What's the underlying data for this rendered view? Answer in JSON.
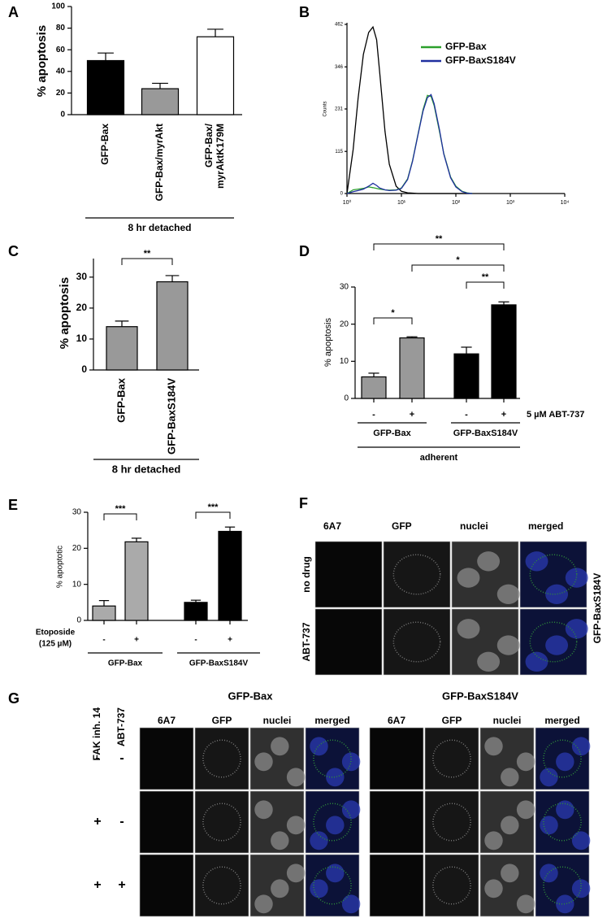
{
  "chart_data": [
    {
      "panel": "A",
      "type": "bar",
      "y_label": "% apoptosis",
      "categories": [
        "GFP-Bax",
        "GFP-Bax/myrAkt",
        [
          "GFP-Bax/",
          "myrAktK179M"
        ]
      ],
      "values": [
        50,
        24,
        72
      ],
      "errors": [
        7,
        5,
        7
      ],
      "colors": [
        "#000000",
        "#999999",
        "#ffffff"
      ],
      "ylim": [
        0,
        100
      ],
      "yticks": [
        0,
        20,
        40,
        60,
        80,
        100
      ],
      "group_label": "8 hr detached"
    },
    {
      "panel": "B",
      "type": "line",
      "y_label": "Counts",
      "log_x": true,
      "xlim": [
        1,
        10000
      ],
      "xticks": [
        {
          "value": 1,
          "label": "10⁰"
        },
        {
          "value": 10,
          "label": "10¹"
        },
        {
          "value": 100,
          "label": "10²"
        },
        {
          "value": 1000,
          "label": "10³"
        },
        {
          "value": 10000,
          "label": "10⁴"
        }
      ],
      "ylim": [
        0,
        462
      ],
      "yticks": [
        0,
        115,
        231,
        346,
        462
      ],
      "x": [
        1,
        1.3,
        1.6,
        2,
        2.5,
        3,
        3.5,
        4,
        5,
        6,
        8,
        10,
        13,
        16,
        20,
        25,
        30,
        35,
        40,
        50,
        60,
        80,
        100,
        130,
        160,
        200
      ],
      "series": [
        {
          "color": "#000000",
          "values": [
            0,
            120,
            260,
            380,
            440,
            455,
            420,
            330,
            170,
            80,
            20,
            6,
            2,
            1,
            0,
            0,
            0,
            0,
            0,
            0,
            0,
            0,
            0,
            0,
            0,
            0
          ]
        },
        {
          "name": "GFP-Bax",
          "color": "#2ca02c",
          "values": [
            0,
            10,
            12,
            14,
            18,
            16,
            14,
            12,
            10,
            9,
            10,
            15,
            40,
            90,
            160,
            230,
            268,
            265,
            240,
            170,
            110,
            45,
            20,
            6,
            2,
            0
          ]
        },
        {
          "name": "GFP-BaxS184V",
          "color": "#1f2f9f",
          "values": [
            0,
            5,
            8,
            12,
            20,
            28,
            22,
            15,
            10,
            8,
            9,
            14,
            38,
            88,
            158,
            226,
            262,
            270,
            245,
            175,
            108,
            43,
            18,
            5,
            1,
            0
          ]
        }
      ]
    },
    {
      "panel": "C",
      "type": "bar",
      "y_label": "% apoptosis",
      "categories": [
        "GFP-Bax",
        "GFP-BaxS184V"
      ],
      "values": [
        14,
        28.5
      ],
      "errors": [
        1.8,
        2
      ],
      "colors": [
        "#999999",
        "#999999"
      ],
      "ylim": [
        0,
        36
      ],
      "yticks": [
        0,
        10,
        20,
        30
      ],
      "significance": [
        "**"
      ],
      "group_label": "8 hr detached"
    },
    {
      "panel": "D",
      "type": "bar",
      "y_label": "% apoptosis",
      "categories": [
        "-",
        "+",
        "-",
        "+"
      ],
      "values": [
        5.8,
        16.3,
        12,
        25.2
      ],
      "errors": [
        1,
        0.3,
        1.8,
        0.8
      ],
      "colors": [
        "#999999",
        "#999999",
        "#000000",
        "#000000"
      ],
      "ylim": [
        0,
        30
      ],
      "yticks": [
        0,
        10,
        20,
        30
      ],
      "treatment": "5 µM ABT-737",
      "groups": [
        "GFP-Bax",
        "GFP-BaxS184V"
      ],
      "group_label": "adherent",
      "significance": [
        "**",
        "*",
        "**",
        "*"
      ]
    },
    {
      "panel": "E",
      "type": "bar",
      "y_label": "% apoptotic",
      "categories": [
        "-",
        "+",
        "-",
        "+"
      ],
      "values": [
        4,
        21.8,
        5,
        24.7
      ],
      "errors": [
        1.5,
        1,
        0.6,
        1.2
      ],
      "colors": [
        "#aaaaaa",
        "#aaaaaa",
        "#000000",
        "#000000"
      ],
      "ylim": [
        0,
        30
      ],
      "yticks": [
        0,
        10,
        20,
        30
      ],
      "treatment": [
        "Etoposide",
        "(125 µM)"
      ],
      "groups": [
        "GFP-Bax",
        "GFP-BaxS184V"
      ],
      "significance": [
        "***",
        "***"
      ]
    }
  ],
  "panel_f": {
    "label": "F",
    "columns": [
      "6A7",
      "GFP",
      "nuclei",
      "merged"
    ],
    "rows": [
      "no drug",
      "ABT-737"
    ],
    "side_label": "GFP-BaxS184V"
  },
  "panel_g": {
    "label": "G",
    "row_headers": [
      "FAK inh. 14",
      "ABT-737"
    ],
    "rows": [
      [
        "-",
        "-"
      ],
      [
        "+",
        "-"
      ],
      [
        "+",
        "+"
      ]
    ],
    "groups": [
      {
        "title": "GFP-Bax",
        "columns": [
          "6A7",
          "GFP",
          "nuclei",
          "merged"
        ]
      },
      {
        "title": "GFP-BaxS184V",
        "columns": [
          "6A7",
          "GFP",
          "nuclei",
          "merged"
        ]
      }
    ]
  }
}
